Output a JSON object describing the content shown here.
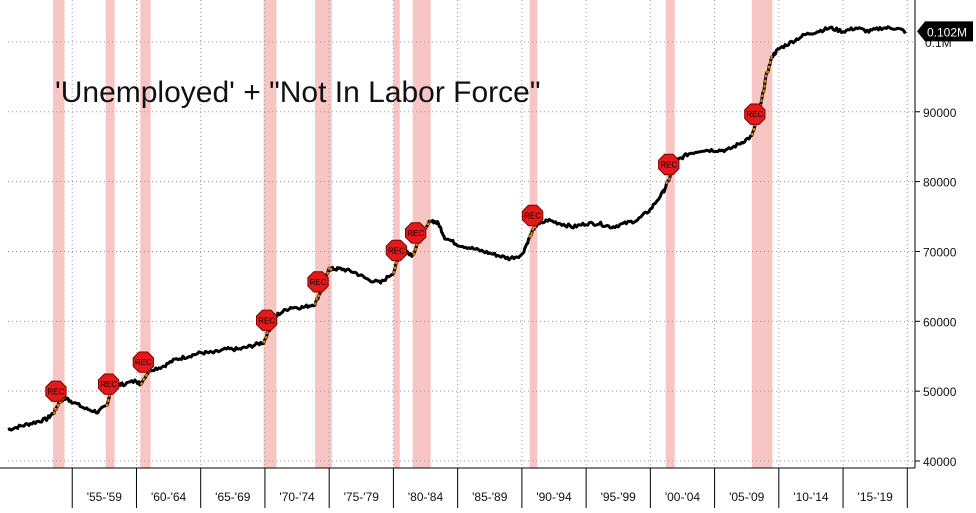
{
  "chart_data": {
    "type": "line",
    "title": "'Unemployed' + \"Not In Labor Force\"",
    "xlabel": "",
    "ylabel": "",
    "ylim": [
      39000,
      106000
    ],
    "xlim": [
      1950.0,
      2020.6
    ],
    "y_ticks": [
      40000,
      50000,
      60000,
      70000,
      80000,
      90000
    ],
    "y_tick_labels": [
      "40000",
      "50000",
      "60000",
      "70000",
      "80000",
      "90000"
    ],
    "y_top_label": "0.1M",
    "last_value_label": "0.102M",
    "x_tick_labels": [
      "'55-'59",
      "'60-'64",
      "'65-'69",
      "'70-'74",
      "'75-'79",
      "'80-'84",
      "'85-'89",
      "'90-'94",
      "'95-'99",
      "'00-'04",
      "'05-'09",
      "'10-'14",
      "'15-'19"
    ],
    "grid": true,
    "series": [
      {
        "x": [
          1950.0,
          1951.0,
          1952.0,
          1953.0,
          1953.6,
          1954.0,
          1954.5,
          1955.0,
          1956.0,
          1957.0,
          1957.7,
          1958.0,
          1958.5,
          1959.0,
          1960.0,
          1960.3,
          1961.0,
          1962.0,
          1963.0,
          1964.0,
          1965.0,
          1966.0,
          1967.0,
          1968.0,
          1969.0,
          1969.9,
          1970.5,
          1971.0,
          1972.0,
          1973.0,
          1973.9,
          1974.5,
          1975.0,
          1975.3,
          1976.0,
          1977.0,
          1978.0,
          1979.0,
          1980.0,
          1980.5,
          1981.0,
          1981.5,
          1982.0,
          1982.9,
          1983.5,
          1984.0,
          1985.0,
          1986.0,
          1987.0,
          1988.0,
          1989.0,
          1990.0,
          1990.6,
          1991.0,
          1992.0,
          1993.0,
          1994.0,
          1995.0,
          1996.0,
          1997.0,
          1998.0,
          1999.0,
          2000.0,
          2001.0,
          2001.5,
          2002.0,
          2003.0,
          2004.0,
          2005.0,
          2006.0,
          2007.0,
          2007.9,
          2008.5,
          2009.0,
          2009.5,
          2010.0,
          2011.0,
          2012.0,
          2013.0,
          2014.0,
          2015.0,
          2016.0,
          2017.0,
          2018.0,
          2019.0,
          2019.9
        ],
        "values": [
          44500,
          45000,
          45500,
          46000,
          47000,
          48500,
          49000,
          48500,
          47500,
          47000,
          48000,
          50000,
          51000,
          51000,
          51500,
          51000,
          53000,
          53500,
          54500,
          55000,
          55500,
          55500,
          56000,
          56000,
          56500,
          57000,
          59500,
          61000,
          62000,
          62000,
          62500,
          65000,
          67500,
          67500,
          67500,
          67000,
          66000,
          65500,
          67000,
          69500,
          70000,
          69500,
          71500,
          74500,
          74000,
          72000,
          71000,
          70500,
          70000,
          69500,
          69000,
          69500,
          72000,
          73500,
          74500,
          74000,
          73500,
          74000,
          74000,
          73500,
          74000,
          74500,
          76000,
          78500,
          80500,
          83000,
          84000,
          84500,
          84500,
          84500,
          85500,
          86500,
          90000,
          95000,
          98000,
          99000,
          100000,
          101000,
          101500,
          102000,
          101500,
          102000,
          101500,
          102000,
          102000,
          101500
        ]
      }
    ],
    "recessions": [
      [
        1953.5,
        1954.4
      ],
      [
        1957.6,
        1958.3
      ],
      [
        1960.3,
        1961.1
      ],
      [
        1969.9,
        1970.9
      ],
      [
        1973.9,
        1975.2
      ],
      [
        1980.0,
        1980.5
      ],
      [
        1981.5,
        1982.9
      ],
      [
        1990.6,
        1991.2
      ],
      [
        2001.2,
        2001.9
      ],
      [
        2007.9,
        2009.5
      ]
    ],
    "rec_label": "REC",
    "colors": {
      "line": "#000000",
      "recession_line": "#e8860b",
      "recession_band": "#f6b6b6",
      "marker": "#e51919",
      "last_value_bg": "#000000",
      "last_value_text": "#ffffff"
    }
  }
}
